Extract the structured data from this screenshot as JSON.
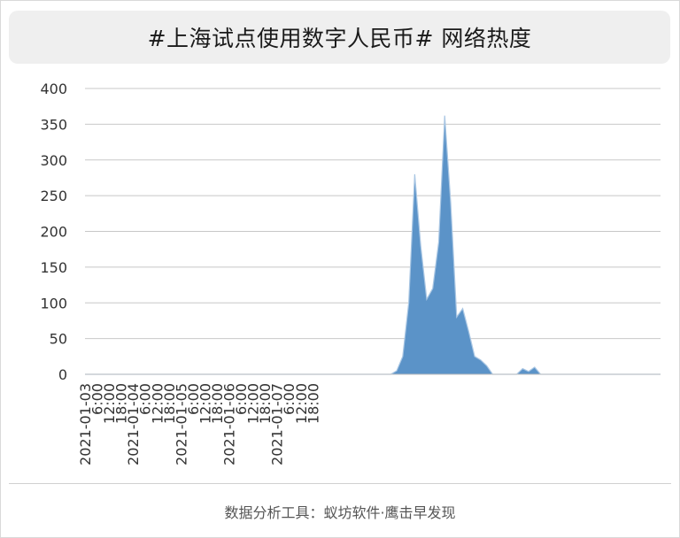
{
  "title": "#上海试点使用数字人民币# 网络热度",
  "footer": "数据分析工具：蚁坊软件·鹰击早发现",
  "colors": {
    "area_fill": "#5b93c8",
    "area_stroke": "#a9c6e3",
    "grid": "#c8c8c8",
    "axis_text": "#333333"
  },
  "chart_data": {
    "type": "area",
    "ylim": [
      0,
      400
    ],
    "yticks": [
      0,
      50,
      100,
      150,
      200,
      250,
      300,
      350,
      400
    ],
    "grid": true,
    "x_tick_labels": [
      "2021-01-03",
      "6:00",
      "12:00",
      "18:00",
      "2021-01-04",
      "6:00",
      "12:00",
      "18:00",
      "2021-01-05",
      "6:00",
      "12:00",
      "18:00",
      "2021-01-06",
      "6:00",
      "12:00",
      "18:00",
      "2021-01-07",
      "6:00",
      "12:00",
      "18:00"
    ],
    "x_step_hours": 3,
    "x_start": "2021-01-03 00:00",
    "series": [
      {
        "values": [
          0,
          0,
          0,
          0,
          0,
          0,
          0,
          0,
          0,
          0,
          0,
          0,
          0,
          0,
          0,
          0,
          0,
          0,
          0,
          0,
          0,
          0,
          0,
          0,
          0,
          0,
          0,
          0,
          0,
          0,
          0,
          0,
          0,
          0,
          0,
          0,
          0,
          0,
          0,
          0,
          0,
          0,
          0,
          0,
          0,
          0,
          0,
          0,
          0,
          0,
          0,
          0,
          5,
          25,
          100,
          280,
          180,
          105,
          120,
          185,
          362,
          240,
          80,
          92,
          60,
          25,
          20,
          12,
          0,
          0,
          0,
          0,
          0,
          8,
          4,
          10,
          0,
          0,
          0,
          0,
          0,
          0,
          0,
          0,
          0,
          0,
          0,
          0,
          0,
          0,
          0,
          0,
          0,
          0,
          0,
          0,
          0
        ]
      }
    ]
  }
}
